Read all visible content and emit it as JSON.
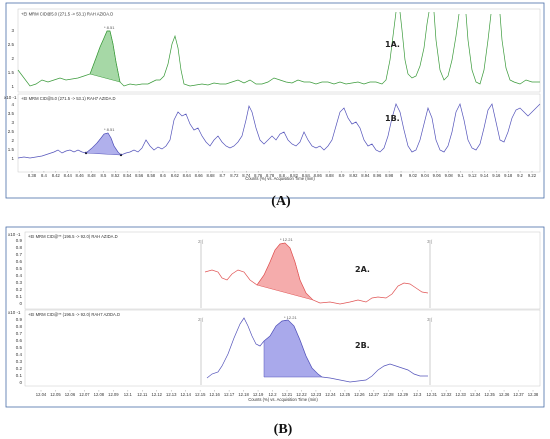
{
  "figures": [
    {
      "caption": "(A)",
      "border_color": "#4a6ea8",
      "axis_title": "Counts (%) vs. Acquisition Time (min)",
      "x_ticks": [
        "8.38",
        "8.4",
        "8.42",
        "8.44",
        "8.46",
        "8.48",
        "8.5",
        "8.52",
        "8.54",
        "8.56",
        "8.58",
        "8.6",
        "8.62",
        "8.64",
        "8.66",
        "8.68",
        "8.7",
        "8.72",
        "8.74",
        "8.76",
        "8.78",
        "8.8",
        "8.82",
        "8.84",
        "8.86",
        "8.88",
        "8.9",
        "8.92",
        "8.94",
        "8.96",
        "8.98",
        "9",
        "9.02",
        "9.04",
        "9.06",
        "9.08",
        "9.1",
        "9.12",
        "9.14",
        "9.16",
        "9.18",
        "9.2",
        "9.22"
      ],
      "panels": [
        {
          "header": "+EI MRM CID@5.0 (271.5 -> 53.1) RAH AZIDA.D",
          "label": "1A.",
          "exp": "",
          "yticks": [
            "1",
            "1.5",
            "2",
            "2.5",
            "3"
          ],
          "peak_label": "* 8.51",
          "color": "#3a9a3a",
          "fill": "#5cb85c"
        },
        {
          "header": "+EI MRM CID@5.0 (271.5 -> 53.1) RAH7 AZIDA.D",
          "label": "1B.",
          "exp": "x10 -1",
          "yticks": [
            "1",
            "1.5",
            "2",
            "2.5",
            "3",
            "3.5",
            "4"
          ],
          "peak_label": "* 8.51",
          "color": "#5555bb",
          "fill": "#7b7be0"
        }
      ]
    },
    {
      "caption": "(B)",
      "border_color": "#4a6ea8",
      "axis_title": "Counts (%) vs. Acquisition Time (min)",
      "x_ticks": [
        "12.04",
        "12.05",
        "12.06",
        "12.07",
        "12.08",
        "12.09",
        "12.1",
        "12.11",
        "12.12",
        "12.13",
        "12.14",
        "12.15",
        "12.16",
        "12.17",
        "12.18",
        "12.19",
        "12.2",
        "12.21",
        "12.22",
        "12.23",
        "12.24",
        "12.25",
        "12.26",
        "12.27",
        "12.28",
        "12.29",
        "12.3",
        "12.31",
        "12.32",
        "12.33",
        "12.34",
        "12.35",
        "12.36",
        "12.37",
        "12.38"
      ],
      "panels": [
        {
          "header": "+EI MRM CID@** (196.5 -> 92.0) RAH AZIDA.D",
          "label": "2A.",
          "exp": "x10 -1",
          "yticks": [
            "0",
            "0.1",
            "0.2",
            "0.3",
            "0.4",
            "0.5",
            "0.6",
            "0.7",
            "0.8",
            "0.9"
          ],
          "peak_label": "* 12.21",
          "marker_left": "2 (",
          "marker_right": "3 (",
          "color": "#e05555",
          "fill": "#f08080"
        },
        {
          "header": "+EI MRM CID@** (196.5 -> 92.0) RAH7 AZIDA.D",
          "label": "2B.",
          "exp": "x10 -1",
          "yticks": [
            "0",
            "0.1",
            "0.2",
            "0.3",
            "0.4",
            "0.5",
            "0.6",
            "0.7",
            "0.8",
            "0.9"
          ],
          "peak_label": "* 12.21",
          "marker_left": "2 (",
          "marker_right": "3 (",
          "color": "#5555bb",
          "fill": "#7b7be0"
        }
      ]
    }
  ],
  "chart_data": [
    {
      "type": "line",
      "panel": "1A.",
      "x": [
        8.38,
        8.4,
        8.42,
        8.44,
        8.46,
        8.48,
        8.5,
        8.51,
        8.52,
        8.54,
        8.58,
        8.6,
        8.62,
        8.66,
        8.7,
        8.74,
        8.78,
        8.82,
        8.86,
        8.9,
        8.94,
        8.98,
        9.02,
        9.06,
        9.1,
        9.14,
        9.18,
        9.22
      ],
      "y": [
        1.5,
        0.9,
        0.9,
        1.2,
        1.0,
        1.6,
        2.6,
        3.1,
        2.2,
        0.95,
        1.0,
        1.0,
        2.9,
        1.0,
        0.9,
        1.1,
        1.0,
        1.4,
        1.0,
        1.1,
        0.9,
        1.0,
        3.4,
        2.0,
        3.3,
        1.1,
        3.3,
        1.0
      ],
      "ylim": [
        0.6,
        3.5
      ]
    },
    {
      "type": "line",
      "panel": "1B.",
      "x": [
        8.38,
        8.42,
        8.46,
        8.48,
        8.5,
        8.51,
        8.52,
        8.54,
        8.58,
        8.62,
        8.66,
        8.7,
        8.74,
        8.78,
        8.82,
        8.86,
        8.9,
        8.94,
        8.98,
        9.02,
        9.06,
        9.1,
        9.14,
        9.18,
        9.22
      ],
      "y": [
        1.0,
        1.1,
        1.3,
        1.5,
        2.0,
        2.2,
        1.8,
        1.1,
        1.2,
        3.3,
        2.0,
        1.5,
        1.2,
        3.4,
        3.0,
        1.4,
        3.8,
        1.4,
        1.0,
        3.8,
        1.5,
        4.0,
        1.5,
        4.0,
        3.6
      ],
      "ylim": [
        0.7,
        4.2
      ]
    },
    {
      "type": "line",
      "panel": "2A.",
      "x": [
        12.19,
        12.2,
        12.21,
        12.22,
        12.23,
        12.25,
        12.27,
        12.29,
        12.31
      ],
      "y": [
        0.5,
        0.35,
        0.95,
        0.25,
        0.05,
        0.08,
        0.05,
        0.33,
        0.2
      ],
      "ylim": [
        0,
        1.0
      ]
    },
    {
      "type": "line",
      "panel": "2B.",
      "x": [
        12.16,
        12.17,
        12.18,
        12.19,
        12.2,
        12.21,
        12.22,
        12.23,
        12.25,
        12.27,
        12.29,
        12.31
      ],
      "y": [
        0.1,
        0.35,
        0.95,
        0.62,
        0.85,
        0.97,
        0.6,
        0.1,
        0.05,
        0.05,
        0.3,
        0.2
      ],
      "ylim": [
        0,
        1.0
      ]
    }
  ]
}
